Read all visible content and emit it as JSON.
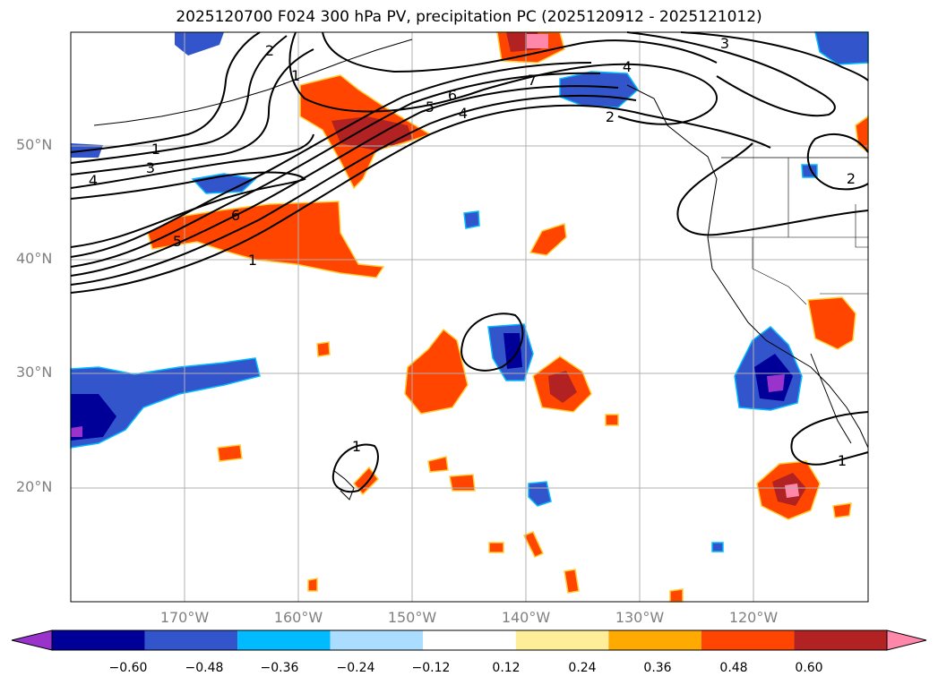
{
  "title": "2025120700 F024 300 hPa PV, precipitation PC (2025120912 - 2025121012)",
  "lat_labels": [
    "50°N",
    "40°N",
    "30°N",
    "20°N"
  ],
  "lon_labels": [
    "170°W",
    "160°W",
    "150°W",
    "140°W",
    "130°W",
    "120°W"
  ],
  "contour_labels": [
    "1",
    "2",
    "3",
    "4",
    "5",
    "6",
    "7",
    "4",
    "5",
    "6",
    "1",
    "2",
    "3",
    "4",
    "1",
    "2",
    "1",
    "1"
  ],
  "colorbar": {
    "ticks": [
      "−0.60",
      "−0.48",
      "−0.36",
      "−0.24",
      "−0.12",
      "0.12",
      "0.24",
      "0.36",
      "0.48",
      "0.60"
    ],
    "colors": [
      "#9933cc",
      "#000099",
      "#3355cc",
      "#00bbff",
      "#aaddff",
      "#ffffff",
      "#ffee99",
      "#ffaa00",
      "#ff4500",
      "#b22222",
      "#ff88aa"
    ]
  }
}
